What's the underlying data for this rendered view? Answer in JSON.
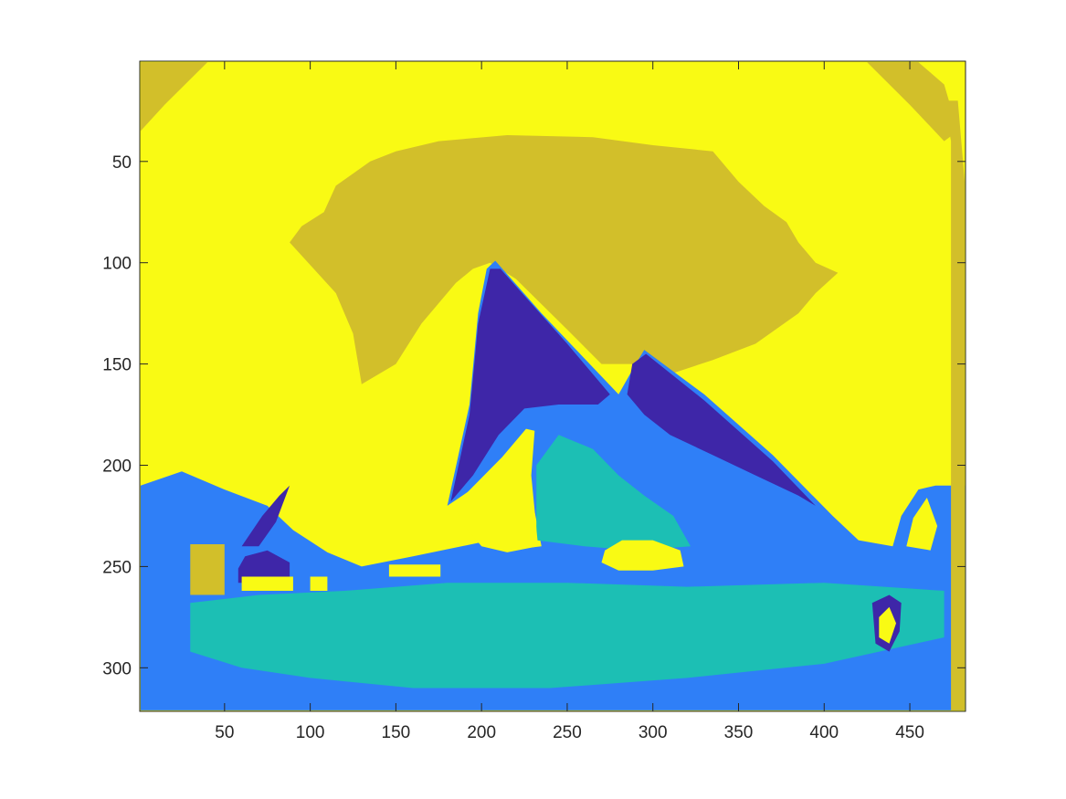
{
  "chart_data": {
    "type": "heatmap",
    "title": "",
    "xlabel": "",
    "ylabel": "",
    "xlim": [
      1,
      482
    ],
    "ylim": [
      1,
      321
    ],
    "y_direction": "reversed",
    "grid": false,
    "legend": "none",
    "x_ticks": [
      50,
      100,
      150,
      200,
      250,
      300,
      350,
      400,
      450
    ],
    "y_ticks": [
      50,
      100,
      150,
      200,
      250,
      300
    ],
    "x_tick_labels": [
      "50",
      "100",
      "150",
      "200",
      "250",
      "300",
      "350",
      "400",
      "450"
    ],
    "y_tick_labels": [
      "50",
      "100",
      "150",
      "200",
      "250",
      "300"
    ],
    "colormap": {
      "1": "#3e26a8",
      "2": "#2f7ff7",
      "3": "#1cbfb4",
      "4": "#d2bf2a",
      "5": "#f9fa14"
    },
    "background_class": 5,
    "regions": [
      {
        "class": 4,
        "points": [
          [
            1,
            35
          ],
          [
            15,
            22
          ],
          [
            40,
            1
          ],
          [
            1,
            1
          ]
        ]
      },
      {
        "class": 4,
        "points": [
          [
            425,
            1
          ],
          [
            455,
            1
          ],
          [
            470,
            12
          ],
          [
            478,
            35
          ],
          [
            470,
            40
          ],
          [
            450,
            22
          ]
        ]
      },
      {
        "class": 4,
        "points": [
          [
            130,
            160
          ],
          [
            125,
            135
          ],
          [
            115,
            115
          ],
          [
            88,
            90
          ],
          [
            95,
            82
          ],
          [
            108,
            75
          ],
          [
            115,
            62
          ],
          [
            135,
            50
          ],
          [
            150,
            45
          ],
          [
            175,
            40
          ],
          [
            215,
            37
          ],
          [
            265,
            38
          ],
          [
            300,
            42
          ],
          [
            335,
            45
          ],
          [
            350,
            60
          ],
          [
            365,
            72
          ],
          [
            378,
            80
          ],
          [
            385,
            90
          ],
          [
            395,
            100
          ],
          [
            408,
            105
          ],
          [
            395,
            115
          ],
          [
            385,
            125
          ],
          [
            360,
            140
          ],
          [
            335,
            148
          ],
          [
            310,
            155
          ],
          [
            290,
            150
          ],
          [
            270,
            150
          ],
          [
            250,
            133
          ],
          [
            220,
            108
          ],
          [
            205,
            100
          ],
          [
            195,
            103
          ],
          [
            185,
            110
          ],
          [
            165,
            130
          ],
          [
            150,
            150
          ]
        ]
      },
      {
        "class": 2,
        "points": [
          [
            180,
            220
          ],
          [
            193,
            170
          ],
          [
            198,
            125
          ],
          [
            203,
            103
          ],
          [
            208,
            99
          ],
          [
            235,
            125
          ],
          [
            280,
            165
          ],
          [
            290,
            150
          ],
          [
            295,
            143
          ],
          [
            330,
            165
          ],
          [
            370,
            195
          ],
          [
            405,
            225
          ],
          [
            420,
            237
          ],
          [
            440,
            240
          ],
          [
            445,
            225
          ],
          [
            455,
            212
          ],
          [
            465,
            210
          ],
          [
            482,
            210
          ],
          [
            482,
            321
          ],
          [
            1,
            321
          ],
          [
            1,
            210
          ],
          [
            25,
            203
          ],
          [
            50,
            212
          ],
          [
            75,
            220
          ],
          [
            90,
            232
          ],
          [
            110,
            243
          ],
          [
            130,
            250
          ],
          [
            160,
            245
          ],
          [
            200,
            238
          ],
          [
            215,
            242
          ],
          [
            235,
            240
          ],
          [
            228,
            210
          ],
          [
            225,
            190
          ],
          [
            215,
            200
          ]
        ]
      },
      {
        "class": 3,
        "points": [
          [
            30,
            268
          ],
          [
            70,
            264
          ],
          [
            120,
            262
          ],
          [
            180,
            258
          ],
          [
            250,
            258
          ],
          [
            320,
            260
          ],
          [
            400,
            258
          ],
          [
            470,
            262
          ],
          [
            470,
            285
          ],
          [
            400,
            298
          ],
          [
            320,
            305
          ],
          [
            240,
            310
          ],
          [
            160,
            310
          ],
          [
            100,
            305
          ],
          [
            60,
            300
          ],
          [
            30,
            292
          ]
        ]
      },
      {
        "class": 3,
        "points": [
          [
            232,
            237
          ],
          [
            232,
            200
          ],
          [
            245,
            185
          ],
          [
            265,
            192
          ],
          [
            280,
            205
          ],
          [
            295,
            215
          ],
          [
            312,
            225
          ],
          [
            322,
            240
          ],
          [
            290,
            242
          ],
          [
            260,
            240
          ]
        ]
      },
      {
        "class": 1,
        "points": [
          [
            182,
            218
          ],
          [
            193,
            175
          ],
          [
            198,
            130
          ],
          [
            205,
            103
          ],
          [
            211,
            103
          ],
          [
            250,
            140
          ],
          [
            275,
            165
          ],
          [
            268,
            170
          ],
          [
            245,
            170
          ],
          [
            225,
            172
          ],
          [
            210,
            185
          ],
          [
            195,
            205
          ]
        ]
      },
      {
        "class": 1,
        "points": [
          [
            288,
            150
          ],
          [
            296,
            145
          ],
          [
            330,
            168
          ],
          [
            370,
            198
          ],
          [
            395,
            220
          ],
          [
            385,
            215
          ],
          [
            360,
            205
          ],
          [
            335,
            195
          ],
          [
            310,
            185
          ],
          [
            295,
            175
          ],
          [
            285,
            165
          ]
        ]
      },
      {
        "class": 1,
        "points": [
          [
            58,
            251
          ],
          [
            62,
            245
          ],
          [
            75,
            242
          ],
          [
            88,
            248
          ],
          [
            88,
            258
          ],
          [
            58,
            258
          ]
        ]
      },
      {
        "class": 1,
        "points": [
          [
            60,
            240
          ],
          [
            72,
            225
          ],
          [
            82,
            215
          ],
          [
            88,
            210
          ],
          [
            80,
            228
          ],
          [
            70,
            240
          ]
        ]
      },
      {
        "class": 1,
        "points": [
          [
            428,
            268
          ],
          [
            438,
            264
          ],
          [
            445,
            268
          ],
          [
            444,
            282
          ],
          [
            438,
            292
          ],
          [
            430,
            288
          ]
        ]
      },
      {
        "class": 5,
        "points": [
          [
            184,
            220
          ],
          [
            198,
            208
          ],
          [
            212,
            196
          ],
          [
            226,
            182
          ],
          [
            231,
            183
          ],
          [
            229,
            205
          ],
          [
            233,
            240
          ],
          [
            215,
            243
          ],
          [
            200,
            240
          ],
          [
            190,
            230
          ]
        ]
      },
      {
        "class": 5,
        "points": [
          [
            60,
            262
          ],
          [
            60,
            255
          ],
          [
            90,
            255
          ],
          [
            90,
            262
          ]
        ]
      },
      {
        "class": 5,
        "points": [
          [
            270,
            248
          ],
          [
            272,
            242
          ],
          [
            282,
            237
          ],
          [
            300,
            237
          ],
          [
            316,
            242
          ],
          [
            318,
            250
          ],
          [
            300,
            252
          ],
          [
            280,
            252
          ]
        ]
      },
      {
        "class": 5,
        "points": [
          [
            432,
            275
          ],
          [
            438,
            270
          ],
          [
            442,
            278
          ],
          [
            438,
            288
          ],
          [
            432,
            285
          ]
        ]
      },
      {
        "class": 5,
        "points": [
          [
            100,
            262
          ],
          [
            100,
            255
          ],
          [
            110,
            255
          ],
          [
            110,
            262
          ]
        ]
      },
      {
        "class": 5,
        "points": [
          [
            146,
            255
          ],
          [
            146,
            249
          ],
          [
            176,
            249
          ],
          [
            176,
            255
          ]
        ]
      },
      {
        "class": 5,
        "points": [
          [
            448,
            240
          ],
          [
            452,
            226
          ],
          [
            460,
            216
          ],
          [
            466,
            230
          ],
          [
            462,
            242
          ]
        ]
      },
      {
        "class": 4,
        "points": [
          [
            30,
            264
          ],
          [
            30,
            239
          ],
          [
            50,
            239
          ],
          [
            50,
            264
          ]
        ]
      },
      {
        "class": 4,
        "points": [
          [
            470,
            20
          ],
          [
            478,
            20
          ],
          [
            482,
            60
          ],
          [
            482,
            321
          ],
          [
            474,
            321
          ],
          [
            474,
            40
          ]
        ]
      }
    ]
  }
}
